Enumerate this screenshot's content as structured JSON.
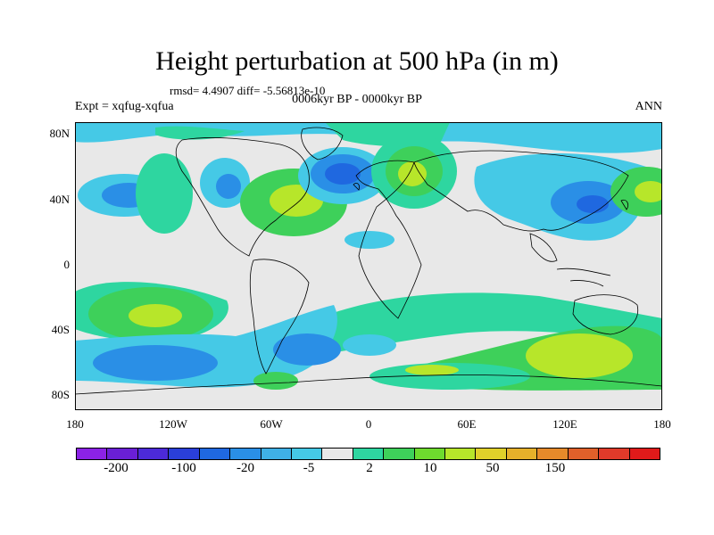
{
  "title": "Height perturbation at 500 hPa (in m)",
  "stats": "rmsd= 4.4907 diff= -5.56813e-10",
  "subtitle": "0006kyr BP - 0000kyr BP",
  "experiment": "Expt = xqfug-xqfua",
  "season": "ANN",
  "lat_labels": [
    "80N",
    "40N",
    "0",
    "40S",
    "80S"
  ],
  "lon_labels": [
    "180",
    "120W",
    "60W",
    "0",
    "60E",
    "120E",
    "180"
  ],
  "colorbar": {
    "colors": [
      "#8b22e6",
      "#6a1fd6",
      "#4c2ad9",
      "#2a3fd9",
      "#1f68e0",
      "#2a8fe6",
      "#3fb0e6",
      "#45c9e6",
      "#e8e8e8",
      "#2ed6a0",
      "#3ed05a",
      "#6edb2e",
      "#b7e62a",
      "#e0d02a",
      "#e6b02a",
      "#e68a2a",
      "#e0602a",
      "#e03a2a",
      "#e01a1a"
    ],
    "labels": [
      "-200",
      "-100",
      "-20",
      "-5",
      "2",
      "10",
      "50",
      "150"
    ]
  },
  "map": {
    "background": "#e8e8e8",
    "field_colors": {
      "light_blue": "#45c9e6",
      "mid_blue": "#2a8fe6",
      "blue": "#1f68e0",
      "dark_blue": "#2a3fd9",
      "teal": "#2ed6a0",
      "green": "#3ed05a",
      "light_green": "#6edb2e",
      "yellow_green": "#b7e62a"
    }
  }
}
